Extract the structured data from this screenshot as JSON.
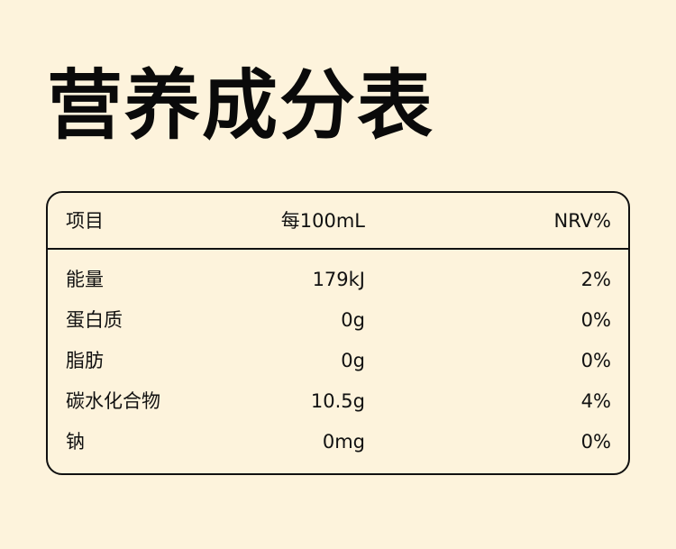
{
  "title": "营养成分表",
  "header": {
    "item": "项目",
    "per": "每100mL",
    "nrv": "NRV%"
  },
  "rows": [
    {
      "name": "能量",
      "value": "179kJ",
      "nrv": "2%"
    },
    {
      "name": "蛋白质",
      "value": "0g",
      "nrv": "0%"
    },
    {
      "name": "脂肪",
      "value": "0g",
      "nrv": "0%"
    },
    {
      "name": "碳水化合物",
      "value": "10.5g",
      "nrv": "4%"
    },
    {
      "name": "钠",
      "value": "0mg",
      "nrv": "0%"
    }
  ]
}
